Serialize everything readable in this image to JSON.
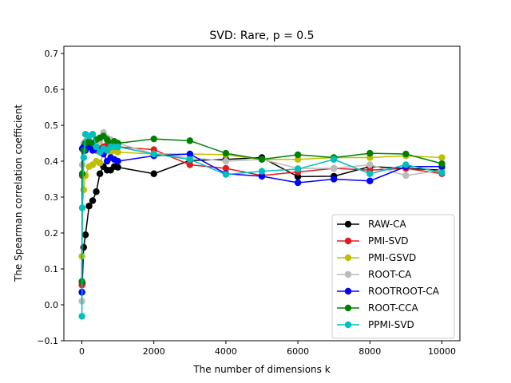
{
  "chart_data": {
    "type": "line",
    "title": "SVD: Rare, p = 0.5",
    "xlabel": "The number of dimensions k",
    "ylabel": "The Spearman correlation coefficient",
    "xlim": [
      -500,
      10500
    ],
    "ylim": [
      -0.1,
      0.72
    ],
    "xticks": [
      0,
      2000,
      4000,
      6000,
      8000,
      10000
    ],
    "yticks": [
      -0.1,
      0.0,
      0.1,
      0.2,
      0.3,
      0.4,
      0.5,
      0.6,
      0.7
    ],
    "xtick_labels": [
      "0",
      "2000",
      "4000",
      "6000",
      "8000",
      "10000"
    ],
    "ytick_labels": [
      "−0.1",
      "0.0",
      "0.1",
      "0.2",
      "0.3",
      "0.4",
      "0.5",
      "0.6",
      "0.7"
    ],
    "grid": false,
    "legend_position": "lower-right",
    "series": [
      {
        "name": "RAW-CA",
        "color": "#000000",
        "x": [
          1,
          10,
          50,
          100,
          200,
          300,
          400,
          500,
          600,
          700,
          800,
          900,
          1000,
          2000,
          3000,
          4000,
          5000,
          6000,
          7000,
          8000,
          9000,
          10000
        ],
        "y": [
          0.035,
          0.06,
          0.16,
          0.195,
          0.275,
          0.29,
          0.315,
          0.365,
          0.385,
          0.375,
          0.375,
          0.385,
          0.383,
          0.365,
          0.402,
          0.405,
          0.41,
          0.357,
          0.358,
          0.385,
          0.38,
          0.375
        ]
      },
      {
        "name": "PMI-SVD",
        "color": "#e41a1c",
        "x": [
          1,
          10,
          50,
          100,
          200,
          300,
          400,
          500,
          600,
          700,
          800,
          900,
          1000,
          2000,
          3000,
          4000,
          5000,
          6000,
          7000,
          8000,
          9000,
          10000
        ],
        "y": [
          0.055,
          0.36,
          0.43,
          0.45,
          0.455,
          0.44,
          0.43,
          0.435,
          0.44,
          0.445,
          0.44,
          0.44,
          0.44,
          0.432,
          0.39,
          0.38,
          0.36,
          0.37,
          0.38,
          0.375,
          0.38,
          0.365
        ]
      },
      {
        "name": "PMI-GSVD",
        "color": "#bfbf00",
        "x": [
          1,
          10,
          50,
          100,
          200,
          300,
          400,
          500,
          600,
          700,
          800,
          900,
          1000,
          2000,
          3000,
          4000,
          5000,
          6000,
          7000,
          8000,
          9000,
          10000
        ],
        "y": [
          0.135,
          0.27,
          0.32,
          0.36,
          0.385,
          0.39,
          0.4,
          0.395,
          0.42,
          0.43,
          0.425,
          0.43,
          0.425,
          0.42,
          0.42,
          0.418,
          0.405,
          0.405,
          0.41,
          0.41,
          0.415,
          0.41
        ]
      },
      {
        "name": "ROOT-CA",
        "color": "#bbbbbb",
        "x": [
          1,
          10,
          50,
          100,
          200,
          300,
          400,
          500,
          600,
          700,
          800,
          900,
          1000,
          2000,
          3000,
          4000,
          5000,
          6000,
          7000,
          8000,
          9000,
          10000
        ],
        "y": [
          0.01,
          0.39,
          0.45,
          0.455,
          0.45,
          0.45,
          0.46,
          0.455,
          0.48,
          0.465,
          0.46,
          0.44,
          0.45,
          0.42,
          0.41,
          0.4,
          0.405,
          0.38,
          0.38,
          0.39,
          0.36,
          0.375
        ]
      },
      {
        "name": "ROOTROOT-CA",
        "color": "#0000ff",
        "x": [
          1,
          10,
          50,
          100,
          200,
          300,
          400,
          500,
          600,
          700,
          800,
          900,
          1000,
          2000,
          3000,
          4000,
          5000,
          6000,
          7000,
          8000,
          9000,
          10000
        ],
        "y": [
          0.035,
          0.435,
          0.44,
          0.43,
          0.44,
          0.43,
          0.435,
          0.43,
          0.42,
          0.4,
          0.41,
          0.405,
          0.4,
          0.415,
          0.42,
          0.365,
          0.358,
          0.34,
          0.35,
          0.345,
          0.385,
          0.385
        ]
      },
      {
        "name": "ROOT-CCA",
        "color": "#008000",
        "x": [
          1,
          10,
          50,
          100,
          200,
          300,
          400,
          500,
          600,
          700,
          800,
          900,
          1000,
          2000,
          3000,
          4000,
          5000,
          6000,
          7000,
          8000,
          9000,
          10000
        ],
        "y": [
          0.065,
          0.365,
          0.43,
          0.45,
          0.455,
          0.45,
          0.46,
          0.465,
          0.47,
          0.46,
          0.45,
          0.455,
          0.45,
          0.462,
          0.457,
          0.422,
          0.405,
          0.418,
          0.41,
          0.422,
          0.42,
          0.393
        ]
      },
      {
        "name": "PPMI-SVD",
        "color": "#00bfbf",
        "x": [
          1,
          10,
          50,
          100,
          200,
          300,
          400,
          500,
          600,
          700,
          800,
          900,
          1000,
          2000,
          3000,
          4000,
          5000,
          6000,
          7000,
          8000,
          9000,
          10000
        ],
        "y": [
          -0.032,
          0.27,
          0.41,
          0.475,
          0.47,
          0.475,
          0.44,
          0.425,
          0.435,
          0.43,
          0.44,
          0.44,
          0.44,
          0.42,
          0.405,
          0.363,
          0.372,
          0.378,
          0.405,
          0.365,
          0.39,
          0.368
        ]
      }
    ]
  }
}
